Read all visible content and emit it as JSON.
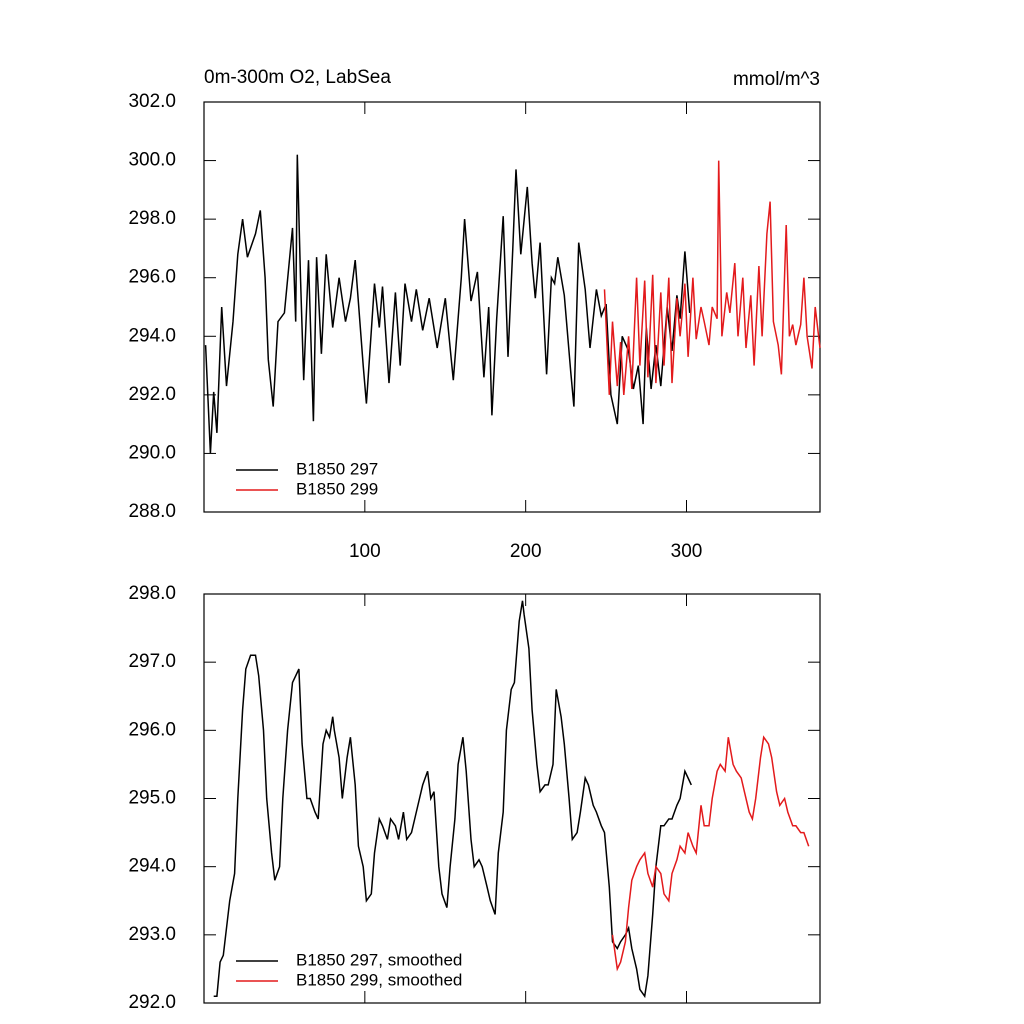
{
  "chart_data": [
    {
      "type": "line",
      "title": "0m-300m O2, LabSea",
      "units": "mmol/m^3",
      "xlim": [
        0,
        383
      ],
      "xticks": [
        100,
        200,
        300
      ],
      "xtick_labels": true,
      "ylim": [
        288,
        302
      ],
      "yticks": [
        {
          "value": 288,
          "label": "288.0"
        },
        {
          "value": 290,
          "label": "290.0"
        },
        {
          "value": 292,
          "label": "292.0"
        },
        {
          "value": 294,
          "label": "294.0"
        },
        {
          "value": 296,
          "label": "296.0"
        },
        {
          "value": 298,
          "label": "298.0"
        },
        {
          "value": 300,
          "label": "300.0"
        },
        {
          "value": 302,
          "label": "302.0"
        }
      ],
      "series": [
        {
          "name": "B1850 297",
          "color": "#000000",
          "x": [
            1,
            4,
            6,
            8,
            11,
            14,
            18,
            21,
            24,
            27,
            32,
            35,
            38,
            40,
            43,
            46,
            50,
            55,
            57,
            58,
            60,
            62,
            65,
            68,
            70,
            73,
            76,
            80,
            84,
            88,
            91,
            94,
            99,
            101,
            106,
            109,
            111,
            115,
            119,
            122,
            125,
            129,
            132,
            136,
            140,
            145,
            150,
            155,
            160,
            162,
            166,
            170,
            174,
            177,
            179,
            182,
            186,
            189,
            192,
            194,
            197,
            201,
            204,
            206,
            209,
            213,
            216,
            218,
            220,
            224,
            228,
            230,
            233,
            237,
            240,
            244,
            247,
            250,
            253,
            257,
            260,
            264,
            267,
            270,
            273,
            275,
            278,
            281,
            284,
            288,
            291,
            294,
            296,
            299,
            302
          ],
          "values": [
            293.7,
            290.0,
            292.1,
            290.7,
            295.0,
            292.3,
            294.5,
            296.8,
            298.0,
            296.7,
            297.5,
            298.3,
            296.0,
            293.2,
            291.6,
            294.5,
            294.8,
            297.7,
            294.5,
            300.2,
            296.0,
            292.5,
            296.6,
            291.1,
            296.7,
            293.4,
            296.8,
            294.3,
            296.0,
            294.5,
            295.3,
            296.6,
            293.0,
            291.7,
            295.8,
            294.3,
            295.7,
            292.4,
            295.5,
            293.0,
            295.8,
            294.5,
            295.6,
            294.2,
            295.3,
            293.6,
            295.3,
            292.5,
            296.0,
            298.0,
            295.2,
            296.2,
            292.6,
            295.0,
            291.3,
            294.6,
            298.1,
            293.3,
            297.0,
            299.7,
            296.8,
            299.1,
            296.5,
            295.3,
            297.2,
            292.7,
            296.0,
            295.8,
            296.7,
            295.4,
            292.8,
            291.6,
            297.2,
            295.6,
            293.6,
            295.6,
            294.7,
            295.1,
            292.0,
            291.0,
            294.0,
            293.5,
            292.2,
            293.0,
            291.0,
            294.3,
            292.2,
            293.7,
            292.3,
            295.0,
            293.5,
            295.4,
            294.6,
            296.9,
            294.8
          ]
        },
        {
          "name": "B1850 299",
          "color": "#e31a1c",
          "x": [
            249,
            252,
            254,
            257,
            259,
            261,
            264,
            266,
            269,
            271,
            274,
            276,
            279,
            281,
            284,
            286,
            289,
            291,
            294,
            296,
            299,
            301,
            304,
            306,
            309,
            311,
            314,
            316,
            319,
            320,
            322,
            325,
            327,
            330,
            332,
            335,
            337,
            340,
            342,
            345,
            347,
            350,
            352,
            354,
            357,
            359,
            362,
            364,
            366,
            368,
            371,
            373,
            375,
            378,
            380,
            383
          ],
          "values": [
            295.6,
            292.0,
            294.5,
            292.3,
            293.8,
            292.0,
            294.0,
            292.2,
            296.0,
            293.0,
            295.9,
            292.6,
            296.1,
            292.4,
            295.5,
            293.0,
            296.0,
            292.4,
            295.3,
            294.0,
            295.8,
            293.3,
            296.0,
            293.9,
            295.0,
            294.5,
            293.7,
            295.0,
            294.6,
            300.0,
            294.0,
            295.5,
            294.8,
            296.5,
            294.0,
            296.0,
            293.6,
            295.4,
            293.0,
            296.4,
            294.0,
            297.5,
            298.6,
            294.5,
            293.7,
            292.7,
            297.8,
            294.0,
            294.4,
            293.7,
            294.4,
            296.0,
            294.0,
            292.9,
            295.0,
            293.6
          ]
        }
      ]
    },
    {
      "type": "line",
      "xlim": [
        0,
        383
      ],
      "xticks": [
        100,
        200,
        300
      ],
      "xtick_labels": false,
      "ylim": [
        292,
        298
      ],
      "yticks": [
        {
          "value": 292,
          "label": "292.0"
        },
        {
          "value": 293,
          "label": "293.0"
        },
        {
          "value": 294,
          "label": "294.0"
        },
        {
          "value": 295,
          "label": "295.0"
        },
        {
          "value": 296,
          "label": "296.0"
        },
        {
          "value": 297,
          "label": "297.0"
        },
        {
          "value": 298,
          "label": "298.0"
        }
      ],
      "series": [
        {
          "name": "B1850 297, smoothed",
          "color": "#000000",
          "x": [
            6,
            8,
            10,
            12,
            16,
            19,
            21,
            24,
            26,
            29,
            32,
            34,
            37,
            39,
            42,
            44,
            47,
            49,
            52,
            55,
            57,
            59,
            61,
            64,
            66,
            69,
            71,
            74,
            76,
            78,
            80,
            81,
            84,
            86,
            89,
            91,
            94,
            96,
            99,
            101,
            104,
            106,
            109,
            111,
            114,
            116,
            119,
            121,
            124,
            126,
            129,
            131,
            134,
            136,
            139,
            141,
            143,
            146,
            148,
            151,
            153,
            156,
            158,
            161,
            163,
            166,
            168,
            171,
            173,
            176,
            178,
            181,
            183,
            186,
            188,
            191,
            193,
            196,
            198,
            199,
            202,
            204,
            207,
            209,
            212,
            214,
            217,
            219,
            222,
            224,
            227,
            229,
            232,
            234,
            237,
            239,
            242,
            244,
            247,
            249,
            252,
            254,
            257,
            259,
            262,
            264,
            266,
            269,
            271,
            274,
            276,
            279,
            281,
            284,
            286,
            289,
            291,
            294,
            296,
            299,
            301,
            303
          ],
          "values": [
            292.1,
            292.1,
            292.6,
            292.7,
            293.5,
            293.9,
            295.0,
            296.3,
            296.9,
            297.1,
            297.1,
            296.8,
            296.0,
            295.0,
            294.2,
            293.8,
            294.0,
            295.0,
            296.0,
            296.7,
            296.8,
            296.9,
            295.8,
            295.0,
            295.0,
            294.8,
            294.7,
            295.8,
            296.0,
            295.9,
            296.2,
            296.0,
            295.6,
            295.0,
            295.6,
            295.9,
            295.2,
            294.3,
            294.0,
            293.5,
            293.6,
            294.2,
            294.7,
            294.6,
            294.4,
            294.7,
            294.6,
            294.4,
            294.8,
            294.4,
            294.5,
            294.7,
            295.0,
            295.2,
            295.4,
            295.0,
            295.1,
            294.0,
            293.6,
            293.4,
            294.0,
            294.7,
            295.5,
            295.9,
            295.4,
            294.4,
            294.0,
            294.1,
            294.0,
            293.7,
            293.5,
            293.3,
            294.2,
            294.8,
            296.0,
            296.6,
            296.7,
            297.6,
            297.9,
            297.7,
            297.2,
            296.3,
            295.5,
            295.1,
            295.2,
            295.2,
            295.5,
            296.6,
            296.2,
            295.8,
            295.0,
            294.4,
            294.5,
            294.8,
            295.3,
            295.2,
            294.9,
            294.8,
            294.6,
            294.5,
            293.7,
            292.9,
            292.8,
            292.9,
            293.0,
            293.1,
            292.8,
            292.5,
            292.2,
            292.1,
            292.4,
            293.3,
            294.0,
            294.6,
            294.6,
            294.7,
            294.7,
            294.9,
            295.0,
            295.4,
            295.3,
            295.2
          ]
        },
        {
          "name": "B1850 299, smoothed",
          "color": "#e31a1c",
          "x": [
            254,
            257,
            259,
            262,
            264,
            266,
            269,
            271,
            274,
            276,
            279,
            281,
            284,
            286,
            289,
            291,
            294,
            296,
            299,
            301,
            304,
            306,
            309,
            311,
            314,
            316,
            319,
            321,
            324,
            326,
            329,
            331,
            334,
            336,
            339,
            341,
            343,
            346,
            348,
            351,
            353,
            356,
            358,
            361,
            363,
            366,
            368,
            371,
            373,
            376
          ],
          "values": [
            293.0,
            292.5,
            292.6,
            292.9,
            293.4,
            293.8,
            294.0,
            294.1,
            294.2,
            293.9,
            293.7,
            294.0,
            293.9,
            293.6,
            293.5,
            293.9,
            294.1,
            294.3,
            294.2,
            294.5,
            294.3,
            294.2,
            294.9,
            294.6,
            294.6,
            295.0,
            295.4,
            295.5,
            295.4,
            295.9,
            295.5,
            295.4,
            295.3,
            295.1,
            294.8,
            294.7,
            295.0,
            295.6,
            295.9,
            295.8,
            295.6,
            295.1,
            294.9,
            295.0,
            294.8,
            294.6,
            294.6,
            294.5,
            294.5,
            294.3
          ]
        }
      ]
    }
  ]
}
